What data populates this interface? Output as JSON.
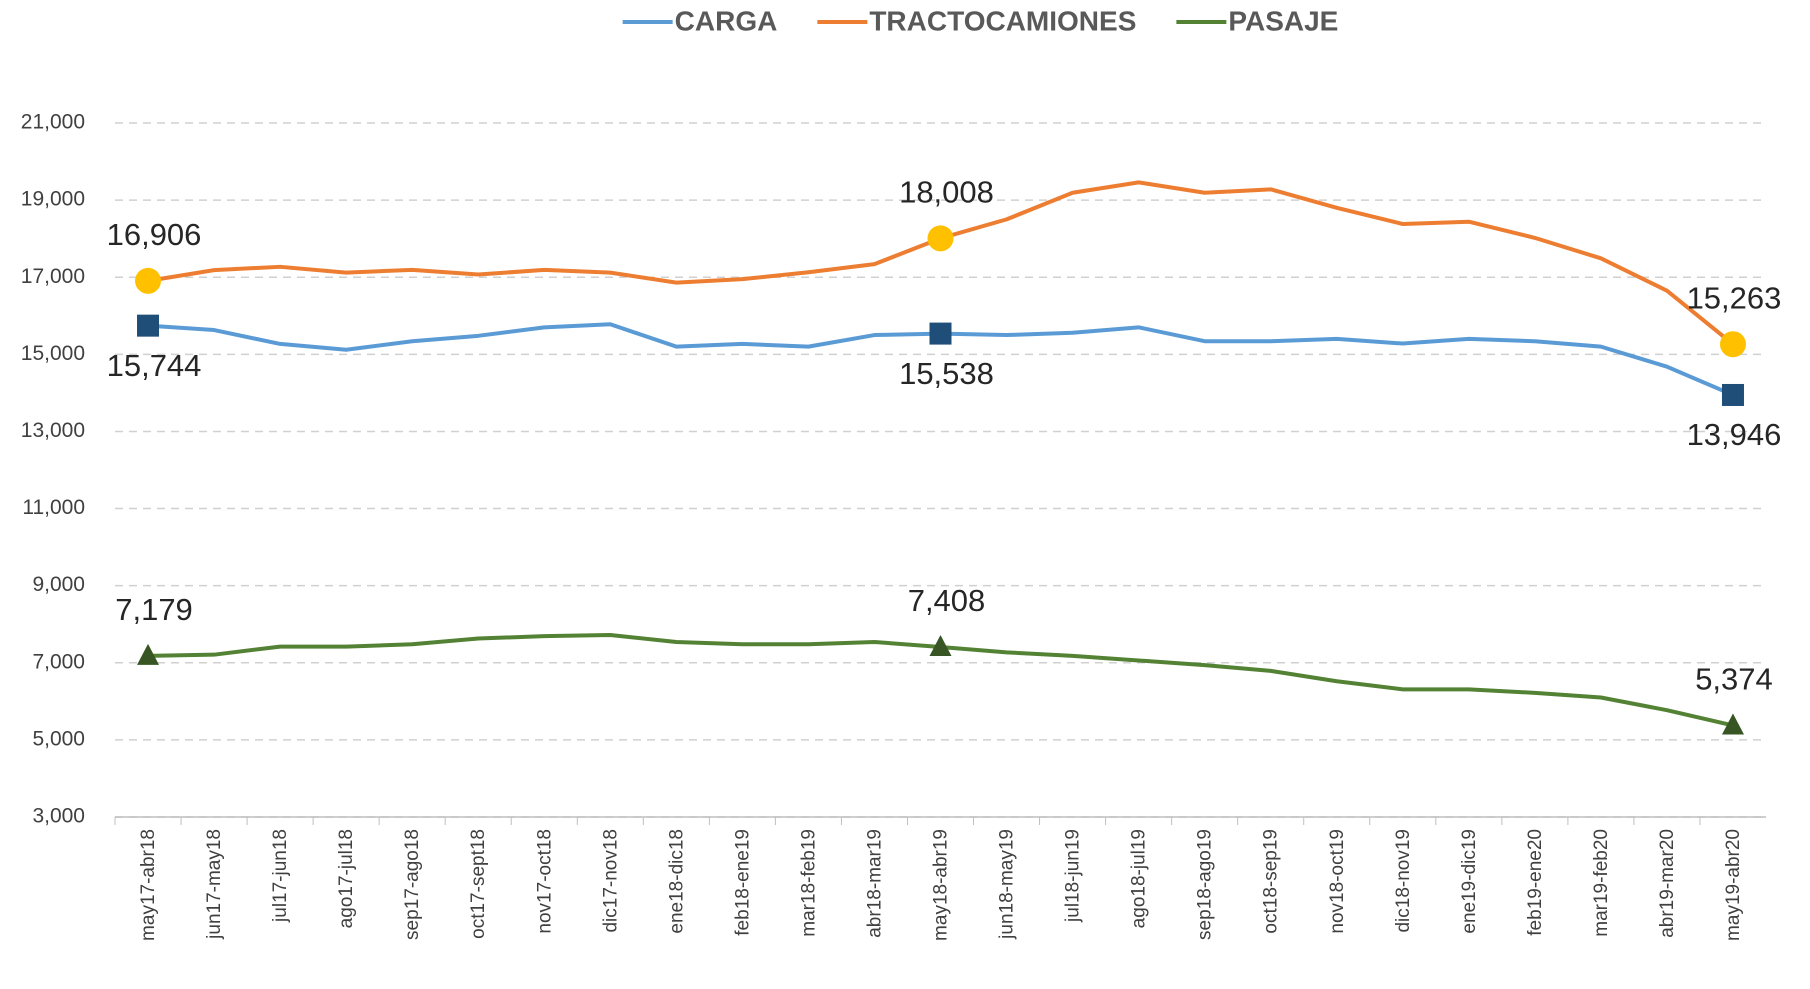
{
  "chart_data": {
    "type": "line",
    "categories": [
      "may17-abr18",
      "jun17-may18",
      "jul17-jun18",
      "ago17-jul18",
      "sep17-ago18",
      "oct17-sept18",
      "nov17-oct18",
      "dic17-nov18",
      "ene18-dic18",
      "feb18-ene19",
      "mar18-feb19",
      "abr18-mar19",
      "may18-abr19",
      "jun18-may19",
      "jul18-jun19",
      "ago18-jul19",
      "sep18-ago19",
      "oct18-sep19",
      "nov18-oct19",
      "dic18-nov19",
      "ene19-dic19",
      "feb19-ene20",
      "mar19-feb20",
      "abr19-mar20",
      "may19-abr20"
    ],
    "series": [
      {
        "name": "CARGA",
        "color": "#5b9bd5",
        "marker": "square",
        "marker_color": "#1f4e79",
        "values": [
          15744,
          15630,
          15270,
          15120,
          15340,
          15480,
          15700,
          15780,
          15200,
          15270,
          15200,
          15500,
          15538,
          15500,
          15560,
          15700,
          15340,
          15340,
          15400,
          15280,
          15400,
          15340,
          15200,
          14680,
          13946
        ],
        "value_labels": [
          "15,744",
          null,
          null,
          null,
          null,
          null,
          null,
          null,
          null,
          null,
          null,
          null,
          "15,538",
          null,
          null,
          null,
          null,
          null,
          null,
          null,
          null,
          null,
          null,
          null,
          "13,946"
        ]
      },
      {
        "name": "TRACTOCAMIONES",
        "color": "#ed7d31",
        "marker": "circle",
        "marker_color": "#ffc000",
        "values": [
          16906,
          17185,
          17270,
          17120,
          17190,
          17070,
          17190,
          17120,
          16860,
          16950,
          17130,
          17340,
          18008,
          18500,
          19190,
          19460,
          19190,
          19280,
          18800,
          18380,
          18440,
          18020,
          17490,
          16650,
          15263
        ],
        "value_labels": [
          "16,906",
          null,
          null,
          null,
          null,
          null,
          null,
          null,
          null,
          null,
          null,
          null,
          "18,008",
          null,
          null,
          null,
          null,
          null,
          null,
          null,
          null,
          null,
          null,
          null,
          "15,263"
        ]
      },
      {
        "name": "PASAJE",
        "color": "#548235",
        "marker": "triangle",
        "marker_color": "#375623",
        "values": [
          7179,
          7210,
          7420,
          7420,
          7480,
          7630,
          7690,
          7720,
          7540,
          7480,
          7480,
          7540,
          7408,
          7270,
          7180,
          7060,
          6940,
          6790,
          6520,
          6310,
          6310,
          6220,
          6100,
          5770,
          5374
        ],
        "value_labels": [
          "7,179",
          null,
          null,
          null,
          null,
          null,
          null,
          null,
          null,
          null,
          null,
          null,
          "7,408",
          null,
          null,
          null,
          null,
          null,
          null,
          null,
          null,
          null,
          null,
          null,
          "5,374"
        ]
      }
    ],
    "ylim": [
      3000,
      21000
    ],
    "yticks": [
      {
        "value": 3000,
        "label": "3,000"
      },
      {
        "value": 5000,
        "label": "5,000"
      },
      {
        "value": 7000,
        "label": "7,000"
      },
      {
        "value": 9000,
        "label": "9,000"
      },
      {
        "value": 11000,
        "label": "11,000"
      },
      {
        "value": 13000,
        "label": "13,000"
      },
      {
        "value": 15000,
        "label": "15,000"
      },
      {
        "value": 17000,
        "label": "17,000"
      },
      {
        "value": 19000,
        "label": "19,000"
      },
      {
        "value": 21000,
        "label": "21,000"
      }
    ],
    "grid": true,
    "legend": "top"
  }
}
